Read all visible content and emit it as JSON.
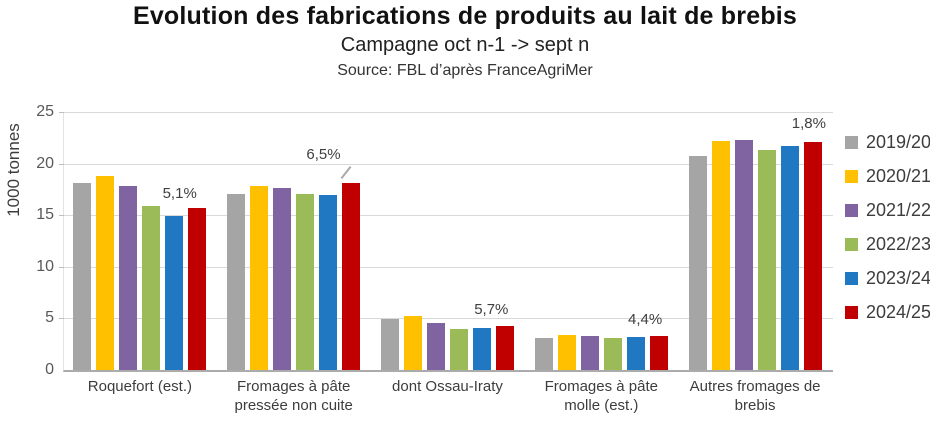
{
  "header": {
    "title": "Evolution des fabrications de produits au lait de brebis",
    "subtitle": "Campagne oct n-1 -> sept n",
    "source": "Source: FBL d’après FranceAgriMer"
  },
  "chart_data": {
    "type": "bar",
    "title": "Evolution des fabrications de produits au lait de brebis",
    "subtitle": "Campagne oct n-1 -> sept n",
    "source": "Source: FBL d’après FranceAgriMer",
    "ylabel": "1000 tonnes",
    "xlabel": "",
    "ylim": [
      0,
      25
    ],
    "yticks": [
      0,
      5,
      10,
      15,
      20,
      25
    ],
    "grid": true,
    "legend_position": "right",
    "categories": [
      "Roquefort (est.)",
      "Fromages à pâte pressée non cuite",
      "dont Ossau-Iraty",
      "Fromages à pâte molle (est.)",
      "Autres fromages de brebis"
    ],
    "series": [
      {
        "name": "2019/20",
        "color": "#A5A5A5",
        "values": [
          18.1,
          17.1,
          4.9,
          3.1,
          20.7
        ]
      },
      {
        "name": "2020/21",
        "color": "#FFC000",
        "values": [
          18.8,
          17.8,
          5.2,
          3.4,
          22.2
        ]
      },
      {
        "name": "2021/22",
        "color": "#8064A2",
        "values": [
          17.8,
          17.6,
          4.6,
          3.3,
          22.3
        ]
      },
      {
        "name": "2022/23",
        "color": "#9BBB59",
        "values": [
          15.9,
          17.1,
          4.0,
          3.1,
          21.3
        ]
      },
      {
        "name": "2023/24",
        "color": "#1F78C1",
        "values": [
          14.9,
          17.0,
          4.1,
          3.2,
          21.7
        ]
      },
      {
        "name": "2024/25",
        "color": "#C00000",
        "values": [
          15.7,
          18.1,
          4.3,
          3.3,
          22.1
        ]
      }
    ],
    "annotations": [
      {
        "category_index": 0,
        "series": "2024/25",
        "label": "5,1%"
      },
      {
        "category_index": 1,
        "series": "2024/25",
        "label": "6,5%"
      },
      {
        "category_index": 2,
        "series": "2024/25",
        "label": "5,7%"
      },
      {
        "category_index": 3,
        "series": "2024/25",
        "label": "4,4%"
      },
      {
        "category_index": 4,
        "series": "2024/25",
        "label": "1,8%"
      }
    ],
    "gridline_color": "#D9D9D9",
    "axis_line_color": "#ABABAB",
    "annotation_text_color": "#3F3F3F"
  }
}
